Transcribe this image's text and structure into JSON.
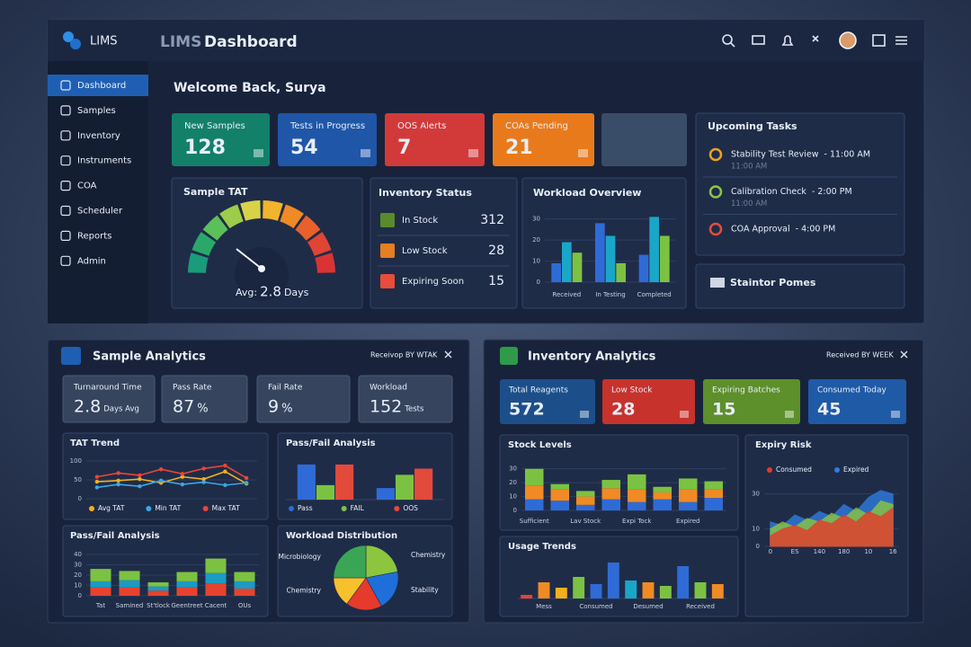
{
  "header": {
    "brand": "LIMS",
    "title_muted": "LIMS",
    "title": "Dashboard"
  },
  "nav": [
    "Dashboard",
    "Samples",
    "Inventory",
    "Instruments",
    "COA",
    "Scheduler",
    "Reports",
    "Admin"
  ],
  "welcome": "Welcome Back, Surya",
  "kpis": [
    {
      "label": "New Samples",
      "value": 128,
      "color": "#13806a"
    },
    {
      "label": "Tests in Progress",
      "value": 54,
      "color": "#1f56a8"
    },
    {
      "label": "OOS Alerts",
      "value": 7,
      "color": "#d23a3a"
    },
    {
      "label": "COAs Pending",
      "value": 21,
      "color": "#e97a1c"
    }
  ],
  "sample_tat": {
    "title": "Sample TAT",
    "avg_label": "Avg:",
    "avg": 2.8,
    "unit": "Days"
  },
  "inventory_status": {
    "title": "Inventory Status",
    "items": [
      {
        "label": "In Stock",
        "value": 312,
        "color": "#5a8a2e"
      },
      {
        "label": "Low Stock",
        "value": 28,
        "color": "#e67e22"
      },
      {
        "label": "Expiring Soon",
        "value": 15,
        "color": "#e74c3c"
      }
    ]
  },
  "upcoming_tasks": {
    "title": "Upcoming Tasks",
    "items": [
      {
        "name": "Stability Test Review",
        "time": "- 11:00 AM",
        "sub": "11:00 AM",
        "color": "#f0a020"
      },
      {
        "name": "Calibration Check",
        "time": "- 2:00 PM",
        "sub": "11:00 AM",
        "color": "#8bc34a"
      },
      {
        "name": "COA Approval",
        "time": "- 4:00 PM",
        "color": "#e74c3c"
      }
    ]
  },
  "status_panel": "Staintor Pomes",
  "sample_analytics": {
    "title": "Sample Analytics",
    "filter": "Receivop BY WTAK",
    "kpis": [
      {
        "label": "Turnaround Time",
        "value": 2.8,
        "unit": "Days Avg"
      },
      {
        "label": "Pass Rate",
        "value": 87,
        "unit": "%"
      },
      {
        "label": "Fail Rate",
        "value": 9,
        "unit": "%"
      },
      {
        "label": "Workload",
        "value": 152,
        "unit": "Tests"
      }
    ]
  },
  "inventory_analytics": {
    "title": "Inventory Analytics",
    "filter": "Received BY WEEK",
    "kpis": [
      {
        "label": "Total Reagents",
        "value": 572,
        "color": "#1c4f8a"
      },
      {
        "label": "Low Stock",
        "value": 28,
        "color": "#c8322c"
      },
      {
        "label": "Expiring Batches",
        "value": 15,
        "color": "#5d8f2a"
      },
      {
        "label": "Consumed Today",
        "value": 45,
        "color": "#1f5aa6"
      }
    ]
  },
  "chart_data": [
    {
      "type": "bar",
      "title": "Workload Overview",
      "categories": [
        "Received",
        "In Testing",
        "Completed"
      ],
      "series": [
        {
          "color": "#2f6bd6",
          "values": [
            9,
            28,
            13
          ]
        },
        {
          "color": "#1aa6c8",
          "values": [
            19,
            22,
            31
          ]
        },
        {
          "color": "#7cc242",
          "values": [
            14,
            9,
            22
          ]
        }
      ],
      "ylim": [
        0,
        35
      ],
      "yticks": [
        0,
        10,
        20,
        30
      ],
      "grid": true
    },
    {
      "type": "line",
      "title": "TAT Trend",
      "categories": [
        null,
        null,
        null,
        null,
        null,
        null,
        null,
        null
      ],
      "series": [
        {
          "name": "Avg TAT",
          "color": "#f2b01e",
          "values": [
            45,
            48,
            52,
            42,
            58,
            52,
            72,
            40
          ]
        },
        {
          "name": "Min TAT",
          "color": "#3aa7e6",
          "values": [
            30,
            38,
            33,
            48,
            38,
            44,
            36,
            42
          ]
        },
        {
          "name": "Max TAT",
          "color": "#e8463a",
          "values": [
            58,
            68,
            62,
            78,
            66,
            80,
            88,
            55
          ]
        }
      ],
      "ylim": [
        0,
        100
      ],
      "yticks": [
        0,
        50,
        100
      ],
      "grid": true
    },
    {
      "type": "bar",
      "title": "Pass/Fail Analysis",
      "categories": [
        null,
        null
      ],
      "series": [
        {
          "name": "Pass",
          "color": "#2f6bd6",
          "values": [
            85,
            28
          ]
        },
        {
          "name": "FAIL",
          "color": "#7cc242",
          "values": [
            35,
            60
          ]
        },
        {
          "name": "OOS",
          "color": "#e24a3b",
          "values": [
            85,
            75
          ]
        }
      ],
      "ylim": [
        0,
        100
      ],
      "grid": true
    },
    {
      "type": "bar",
      "stacked": true,
      "title": "Pass/Fail Analysis",
      "categories": [
        "Tat",
        "Samined",
        "St'tlock",
        "Geentreet",
        "Cacent",
        "OUs"
      ],
      "series": [
        {
          "color": "#e5432f",
          "values": [
            8,
            8,
            5,
            8,
            12,
            7
          ]
        },
        {
          "color": "#1b9bc4",
          "values": [
            6,
            7,
            4,
            6,
            10,
            7
          ]
        },
        {
          "color": "#7cc242",
          "values": [
            12,
            9,
            4,
            9,
            14,
            9
          ]
        }
      ],
      "ylim": [
        0,
        40
      ],
      "yticks": [
        0,
        10,
        20,
        30,
        40
      ],
      "grid": true
    },
    {
      "type": "pie",
      "title": "Workload Distribution",
      "categories": [
        "Chemistry",
        "Stability",
        null,
        "Chemistry",
        "Microbiology"
      ],
      "values": [
        22,
        20,
        18,
        15,
        25
      ],
      "colors": [
        "#8cc63f",
        "#1e6fd9",
        "#e53a2c",
        "#f6c12c",
        "#3aa655"
      ]
    },
    {
      "type": "bar",
      "stacked": true,
      "title": "Stock Levels",
      "categories": [
        "Sufficient",
        null,
        "Lav Stock",
        null,
        "Expi Tock",
        null,
        "Expired",
        null
      ],
      "series": [
        {
          "color": "#2f6bd6",
          "values": [
            8,
            7,
            4,
            8,
            6,
            8,
            6,
            9
          ]
        },
        {
          "color": "#f08a24",
          "values": [
            10,
            8,
            6,
            8,
            9,
            5,
            9,
            6
          ]
        },
        {
          "color": "#7cc242",
          "values": [
            12,
            4,
            4,
            6,
            11,
            4,
            8,
            6
          ]
        }
      ],
      "ylim": [
        0,
        35
      ],
      "yticks": [
        0,
        10,
        20,
        30
      ],
      "grid": true
    },
    {
      "type": "bar",
      "title": "Usage Trends",
      "categories": [
        null,
        "Mess",
        null,
        null,
        "Consumed",
        null,
        null,
        "Desumed",
        null,
        null,
        "Received",
        null
      ],
      "series": [
        {
          "values": [
            2,
            9,
            6,
            12,
            8,
            20,
            10,
            9,
            7,
            18,
            9,
            8
          ],
          "colors": [
            "#e5432f",
            "#f08a24",
            "#f2b01e",
            "#7cc242",
            "#2f6bd6",
            "#2f6bd6",
            "#1aa6c8",
            "#f08a24",
            "#7cc242",
            "#2f6bd6",
            "#7cc242",
            "#f08a24"
          ]
        }
      ],
      "ylim": [
        0,
        22
      ],
      "grid": true
    },
    {
      "type": "area",
      "title": "Expiry Risk",
      "categories": [
        "0",
        null,
        "ES",
        null,
        "140",
        null,
        "180",
        null,
        "10",
        null,
        "16"
      ],
      "series": [
        {
          "name": "Consumed",
          "color": "#e53a2c",
          "values": [
            6,
            10,
            12,
            9,
            15,
            13,
            18,
            14,
            20,
            17,
            22
          ]
        },
        {
          "color": "#8cc63f",
          "values": [
            10,
            14,
            11,
            16,
            14,
            19,
            16,
            22,
            18,
            26,
            24
          ]
        },
        {
          "name": "Expired",
          "color": "#2f7de0",
          "values": [
            14,
            12,
            18,
            15,
            20,
            17,
            24,
            20,
            28,
            32,
            30
          ]
        }
      ],
      "ylim": [
        0,
        35
      ],
      "yticks": [
        0,
        10,
        30
      ],
      "grid": true,
      "legend": "top"
    }
  ]
}
